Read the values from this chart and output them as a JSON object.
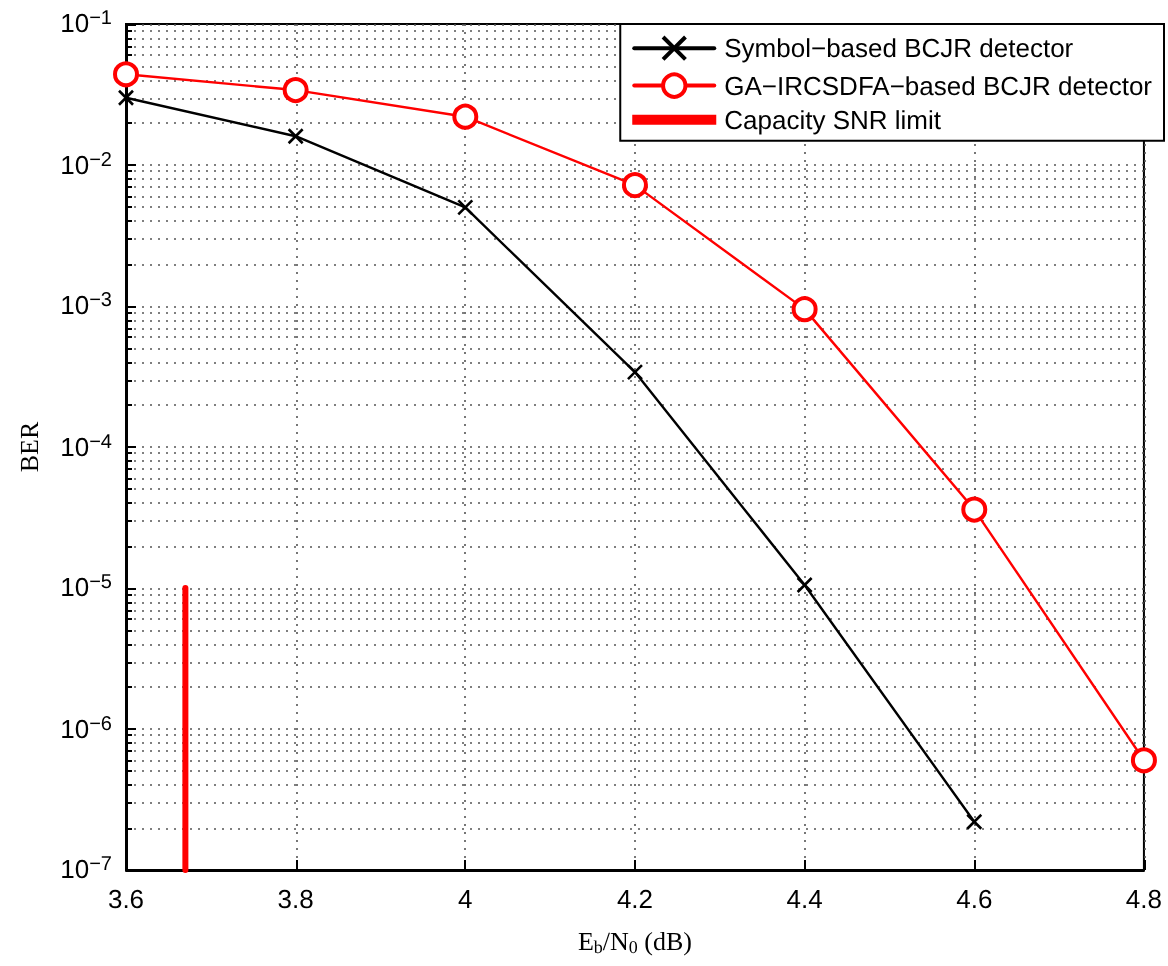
{
  "chart_data": {
    "type": "line",
    "xlabel": "E$_{b}$/N$_{0}$ (dB)",
    "ylabel": "BER",
    "log": "y",
    "xlim": [
      3.6,
      4.8
    ],
    "xticks": [
      3.6,
      3.8,
      4,
      4.2,
      4.4,
      4.6,
      4.8
    ],
    "ylim": [
      1e-07,
      0.1
    ],
    "yticks": [
      {
        "value": 1e-07,
        "label": "10$^{−7}$"
      },
      {
        "value": 1e-06,
        "label": "10$^{−6}$"
      },
      {
        "value": 1e-05,
        "label": "10$^{−5}$"
      },
      {
        "value": 0.0001,
        "label": "10$^{−4}$"
      },
      {
        "value": 0.001,
        "label": "10$^{−3}$"
      },
      {
        "value": 0.01,
        "label": "10$^{−2}$"
      },
      {
        "value": 0.1,
        "label": "10$^{−1}$"
      }
    ],
    "grid": true,
    "legend": "top right",
    "series": [
      {
        "name": "Symbol−based BCJR detector",
        "color": "#000000",
        "marker": "cross",
        "x": [
          3.6,
          3.8,
          4,
          4.2,
          4.4,
          4.6
        ],
        "values": [
          0.03,
          0.016,
          0.005,
          0.00034,
          1.05e-05,
          2.2e-07
        ]
      },
      {
        "name": "GA−IRCSDFA−based BCJR detector",
        "color": "#ff0000",
        "marker": "circle",
        "x": [
          3.6,
          3.8,
          4,
          4.2,
          4.4,
          4.6,
          4.8
        ],
        "values": [
          0.044,
          0.034,
          0.022,
          0.0072,
          0.00095,
          3.6e-05,
          6e-07
        ]
      },
      {
        "name": "Capacity SNR limit",
        "color": "#ff0000",
        "marker": "none",
        "x": [
          3.67,
          3.67
        ],
        "values": [
          1e-07,
          1e-05
        ]
      }
    ]
  }
}
